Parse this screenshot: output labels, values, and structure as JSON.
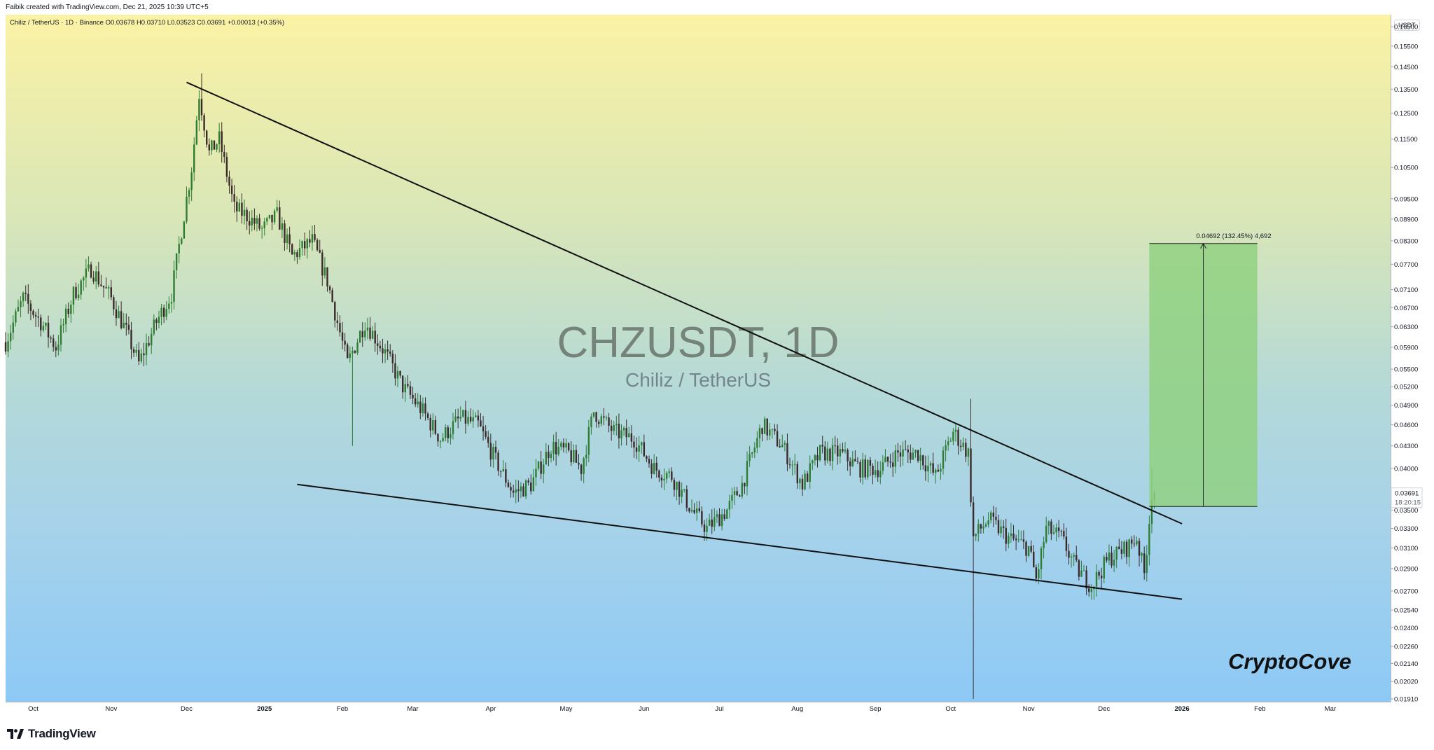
{
  "header": {
    "attribution": "Faibik created with TradingView.com, Dec 21, 2025 10:39 UTC+5"
  },
  "legend": {
    "symbol_line": "Chiliz / TetherUS · 1D · Binance O0.03678 H0.03710 L0.03523 C0.03691 +0.00013 (+0.35%)"
  },
  "watermark": {
    "title": "CHZUSDT, 1D",
    "subtitle": "Chiliz / TetherUS"
  },
  "brand": {
    "signature": "CryptoCove",
    "footer_logo": "TradingView"
  },
  "price_axis": {
    "currency": "USDT",
    "current_price": "0.03691",
    "countdown": "18:20:15"
  },
  "measure": {
    "label": "0.04692 (132.45%) 4,692"
  },
  "colors": {
    "bull": "#2e7d32",
    "bear": "#3b2a2a",
    "target_box": "#8fd17f",
    "price_tag": "#131722"
  },
  "chart_data": {
    "type": "candlestick",
    "title": "CHZUSDT, 1D",
    "y_scale": "log",
    "ylim": [
      0.0191,
      0.168
    ],
    "x_range": [
      "2024-09-20",
      "2026-03-25"
    ],
    "y_ticks": [
      0.165,
      0.155,
      0.145,
      0.135,
      0.125,
      0.115,
      0.105,
      0.095,
      0.089,
      0.083,
      0.077,
      0.071,
      0.067,
      0.063,
      0.059,
      0.055,
      0.052,
      0.049,
      0.046,
      0.043,
      0.04,
      0.035,
      0.033,
      0.031,
      0.029,
      0.027,
      0.0254,
      0.024,
      0.0226,
      0.0214,
      0.0202,
      0.0191
    ],
    "y_tick_labels": [
      "0.16500",
      "0.15500",
      "0.14500",
      "0.13500",
      "0.12500",
      "0.11500",
      "0.10500",
      "0.09500",
      "0.08900",
      "0.08300",
      "0.07700",
      "0.07100",
      "0.06700",
      "0.06300",
      "0.05900",
      "0.05500",
      "0.05200",
      "0.04900",
      "0.04600",
      "0.04300",
      "0.04000",
      "0.03500",
      "0.03300",
      "0.03100",
      "0.02900",
      "0.02700",
      "0.02540",
      "0.02400",
      "0.02260",
      "0.02140",
      "0.02020",
      "0.01910"
    ],
    "x_ticks": [
      {
        "label": "Oct",
        "date": "2024-10-01"
      },
      {
        "label": "Nov",
        "date": "2024-11-01"
      },
      {
        "label": "Dec",
        "date": "2024-12-01"
      },
      {
        "label": "2025",
        "date": "2025-01-01"
      },
      {
        "label": "Feb",
        "date": "2025-02-01"
      },
      {
        "label": "Mar",
        "date": "2025-03-01"
      },
      {
        "label": "Apr",
        "date": "2025-04-01"
      },
      {
        "label": "May",
        "date": "2025-05-01"
      },
      {
        "label": "Jun",
        "date": "2025-06-01"
      },
      {
        "label": "Jul",
        "date": "2025-07-01"
      },
      {
        "label": "Aug",
        "date": "2025-08-01"
      },
      {
        "label": "Sep",
        "date": "2025-09-01"
      },
      {
        "label": "Oct",
        "date": "2025-10-01"
      },
      {
        "label": "Nov",
        "date": "2025-11-01"
      },
      {
        "label": "Dec",
        "date": "2025-12-01"
      },
      {
        "label": "2026",
        "date": "2026-01-01"
      },
      {
        "label": "Feb",
        "date": "2026-02-01"
      },
      {
        "label": "Mar",
        "date": "2026-03-01"
      }
    ],
    "price_path": [
      [
        "2024-09-20",
        0.06
      ],
      [
        "2024-09-27",
        0.069
      ],
      [
        "2024-10-04",
        0.064
      ],
      [
        "2024-10-10",
        0.059
      ],
      [
        "2024-10-17",
        0.07
      ],
      [
        "2024-10-24",
        0.076
      ],
      [
        "2024-11-01",
        0.069
      ],
      [
        "2024-11-07",
        0.062
      ],
      [
        "2024-11-12",
        0.056
      ],
      [
        "2024-11-19",
        0.064
      ],
      [
        "2024-11-25",
        0.07
      ],
      [
        "2024-11-29",
        0.086
      ],
      [
        "2024-12-03",
        0.105
      ],
      [
        "2024-12-06",
        0.133
      ],
      [
        "2024-12-10",
        0.11
      ],
      [
        "2024-12-14",
        0.115
      ],
      [
        "2024-12-20",
        0.092
      ],
      [
        "2024-12-25",
        0.09
      ],
      [
        "2024-12-31",
        0.086
      ],
      [
        "2025-01-06",
        0.09
      ],
      [
        "2025-01-12",
        0.079
      ],
      [
        "2025-01-20",
        0.083
      ],
      [
        "2025-01-26",
        0.073
      ],
      [
        "2025-02-03",
        0.056
      ],
      [
        "2025-02-10",
        0.064
      ],
      [
        "2025-02-18",
        0.058
      ],
      [
        "2025-02-25",
        0.052
      ],
      [
        "2025-03-05",
        0.048
      ],
      [
        "2025-03-12",
        0.044
      ],
      [
        "2025-03-20",
        0.047
      ],
      [
        "2025-03-27",
        0.046
      ],
      [
        "2025-04-03",
        0.041
      ],
      [
        "2025-04-10",
        0.037
      ],
      [
        "2025-04-17",
        0.038
      ],
      [
        "2025-04-25",
        0.043
      ],
      [
        "2025-05-02",
        0.042
      ],
      [
        "2025-05-07",
        0.04
      ],
      [
        "2025-05-12",
        0.048
      ],
      [
        "2025-05-20",
        0.045
      ],
      [
        "2025-05-28",
        0.044
      ],
      [
        "2025-06-05",
        0.04
      ],
      [
        "2025-06-12",
        0.039
      ],
      [
        "2025-06-20",
        0.035
      ],
      [
        "2025-06-26",
        0.033
      ],
      [
        "2025-07-04",
        0.035
      ],
      [
        "2025-07-10",
        0.038
      ],
      [
        "2025-07-18",
        0.046
      ],
      [
        "2025-07-26",
        0.043
      ],
      [
        "2025-08-03",
        0.038
      ],
      [
        "2025-08-10",
        0.042
      ],
      [
        "2025-08-18",
        0.042
      ],
      [
        "2025-08-26",
        0.04
      ],
      [
        "2025-09-03",
        0.04
      ],
      [
        "2025-09-10",
        0.042
      ],
      [
        "2025-09-18",
        0.042
      ],
      [
        "2025-09-25",
        0.039
      ],
      [
        "2025-10-02",
        0.045
      ],
      [
        "2025-10-08",
        0.042
      ],
      [
        "2025-10-10",
        0.032
      ],
      [
        "2025-10-16",
        0.034
      ],
      [
        "2025-10-24",
        0.032
      ],
      [
        "2025-11-01",
        0.031
      ],
      [
        "2025-11-04",
        0.028
      ],
      [
        "2025-11-08",
        0.033
      ],
      [
        "2025-11-14",
        0.032
      ],
      [
        "2025-11-20",
        0.029
      ],
      [
        "2025-11-26",
        0.0275
      ],
      [
        "2025-12-03",
        0.03
      ],
      [
        "2025-12-10",
        0.031
      ],
      [
        "2025-12-14",
        0.032
      ],
      [
        "2025-12-17",
        0.0285
      ],
      [
        "2025-12-20",
        0.037
      ],
      [
        "2025-12-21",
        0.0369
      ]
    ],
    "wicks": [
      {
        "date": "2024-12-07",
        "high": 0.142
      },
      {
        "date": "2025-02-05",
        "low": 0.043
      },
      {
        "date": "2025-10-09",
        "high": 0.05
      },
      {
        "date": "2025-10-10",
        "low": 0.0191
      },
      {
        "date": "2025-12-20",
        "high": 0.04
      }
    ],
    "trendlines": [
      {
        "name": "Resistance",
        "points": [
          [
            "2024-12-01",
            0.138
          ],
          [
            "2026-01-01",
            0.0335
          ]
        ]
      },
      {
        "name": "Support",
        "points": [
          [
            "2025-01-14",
            0.038
          ],
          [
            "2026-01-01",
            0.0263
          ]
        ]
      }
    ],
    "target_zone": {
      "start": "2025-12-19",
      "end": "2026-01-31",
      "bottom": 0.0354,
      "top": 0.0823,
      "change": 0.04692,
      "change_pct": 132.45,
      "ticks": 4692
    },
    "last_price": 0.03691
  }
}
